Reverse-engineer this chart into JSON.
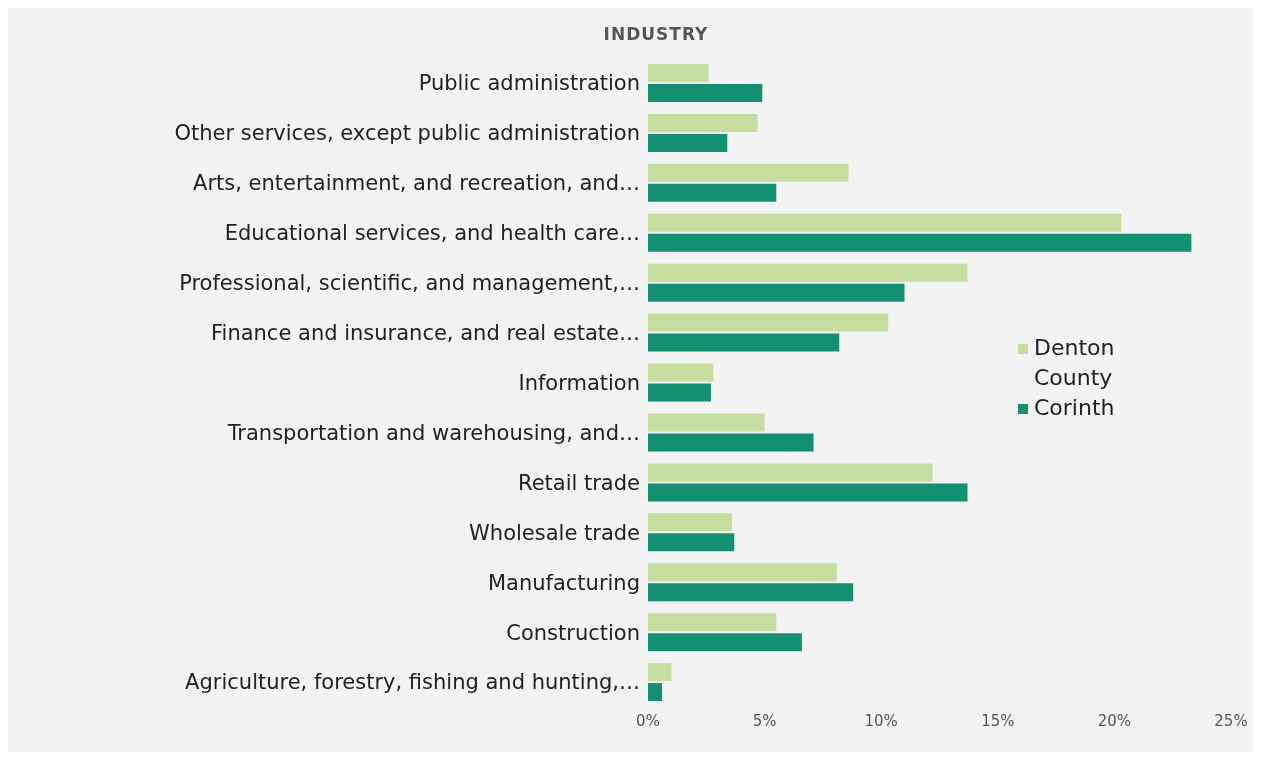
{
  "chart_data": {
    "type": "bar",
    "orientation": "horizontal",
    "title": "INDUSTRY",
    "categories": [
      "Public administration",
      "Other services, except public administration",
      "Arts, entertainment, and recreation, and…",
      "Educational services, and health care…",
      "Professional, scientific, and management,…",
      "Finance and insurance, and real estate…",
      "Information",
      "Transportation and warehousing, and…",
      "Retail trade",
      "Wholesale trade",
      "Manufacturing",
      "Construction",
      "Agriculture, forestry, fishing and hunting,…"
    ],
    "series": [
      {
        "name": "Denton County",
        "color": "#c5dea0",
        "values": [
          2.6,
          4.7,
          8.6,
          20.3,
          13.7,
          10.3,
          2.8,
          5.0,
          12.2,
          3.6,
          8.1,
          5.5,
          1.0
        ]
      },
      {
        "name": "Corinth",
        "color": "#138f72",
        "values": [
          4.9,
          3.4,
          5.5,
          23.3,
          11.0,
          8.2,
          2.7,
          7.1,
          13.7,
          3.7,
          8.8,
          6.6,
          0.6
        ]
      }
    ],
    "xlim": [
      0,
      25
    ],
    "xticks": [
      {
        "value": 0,
        "label": "0%"
      },
      {
        "value": 5,
        "label": "5%"
      },
      {
        "value": 10,
        "label": "10%"
      },
      {
        "value": 15,
        "label": "15%"
      },
      {
        "value": 20,
        "label": "20%"
      },
      {
        "value": 25,
        "label": "25%"
      }
    ],
    "grid": false,
    "legend": "right"
  }
}
